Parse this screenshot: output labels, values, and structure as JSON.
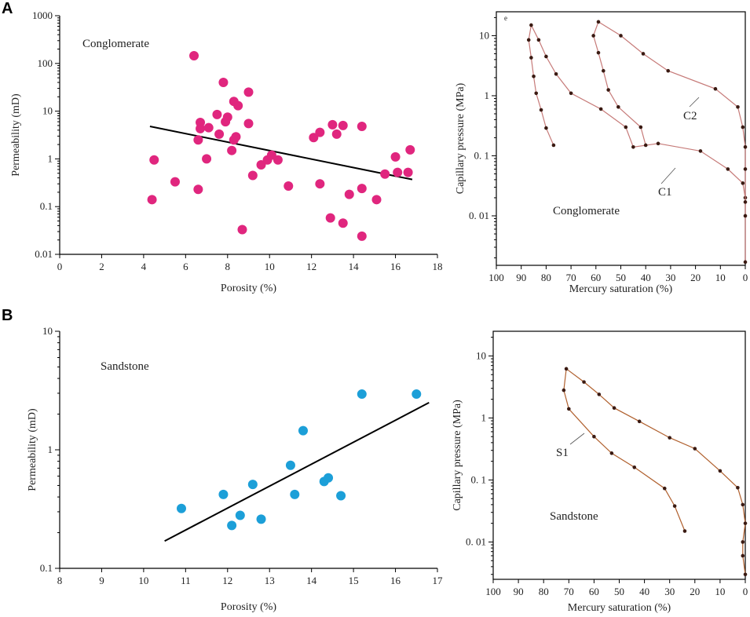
{
  "panel_labels": [
    "A",
    "B"
  ],
  "colors": {
    "conglomerate_marker": "#e0267e",
    "sandstone_marker": "#1c9fd8",
    "curve_a": "#c67a78",
    "curve_b": "#b0602e"
  },
  "chart_data": [
    {
      "id": "perm-conglomerate",
      "type": "scatter",
      "annotation": "Conglomerate",
      "xlabel": "Porosity (%)",
      "ylabel": "Permeability (mD)",
      "xscale": "linear",
      "yscale": "log",
      "xlim": [
        0,
        18
      ],
      "ylim": [
        0.01,
        1000
      ],
      "xticks": [
        0,
        2,
        4,
        6,
        8,
        10,
        12,
        14,
        16,
        18
      ],
      "yticks": [
        0.01,
        0.1,
        1,
        10,
        100,
        1000
      ],
      "ytick_labels": [
        "0.01",
        "0.1",
        "1",
        "10",
        "100",
        "1000"
      ],
      "points": [
        [
          4.4,
          0.14
        ],
        [
          4.5,
          0.95
        ],
        [
          5.5,
          0.33
        ],
        [
          6.4,
          145
        ],
        [
          6.6,
          0.23
        ],
        [
          6.6,
          2.5
        ],
        [
          6.7,
          5.8
        ],
        [
          6.7,
          4.3
        ],
        [
          7.0,
          1.0
        ],
        [
          7.1,
          4.5
        ],
        [
          7.5,
          8.5
        ],
        [
          7.6,
          3.3
        ],
        [
          7.8,
          40
        ],
        [
          7.9,
          6.0
        ],
        [
          8.0,
          7.5
        ],
        [
          8.2,
          1.5
        ],
        [
          8.3,
          16
        ],
        [
          8.3,
          2.5
        ],
        [
          8.4,
          2.9
        ],
        [
          8.5,
          13
        ],
        [
          8.7,
          0.033
        ],
        [
          9.0,
          5.5
        ],
        [
          9.0,
          25
        ],
        [
          9.2,
          0.45
        ],
        [
          9.6,
          0.75
        ],
        [
          9.9,
          0.95
        ],
        [
          10.1,
          1.2
        ],
        [
          10.4,
          0.95
        ],
        [
          10.9,
          0.27
        ],
        [
          12.1,
          2.8
        ],
        [
          12.4,
          3.6
        ],
        [
          12.4,
          0.3
        ],
        [
          12.9,
          0.058
        ],
        [
          13.0,
          5.2
        ],
        [
          13.2,
          3.3
        ],
        [
          13.5,
          5.0
        ],
        [
          13.5,
          0.045
        ],
        [
          13.8,
          0.18
        ],
        [
          14.4,
          0.024
        ],
        [
          14.4,
          0.24
        ],
        [
          14.4,
          4.8
        ],
        [
          15.1,
          0.14
        ],
        [
          15.5,
          0.48
        ],
        [
          16.0,
          1.1
        ],
        [
          16.1,
          0.52
        ],
        [
          16.6,
          0.52
        ],
        [
          16.7,
          1.55
        ]
      ],
      "trendline": [
        [
          4.3,
          4.8
        ],
        [
          16.8,
          0.37
        ]
      ]
    },
    {
      "id": "pc-conglomerate",
      "type": "line",
      "annotation": "Conglomerate",
      "corner_label": "e",
      "xlabel": "Mercury saturation (%)",
      "ylabel": "Capillary pressure (MPa)",
      "xscale": "linear",
      "x_reversed": true,
      "yscale": "log",
      "xlim": [
        100,
        0
      ],
      "ylim": [
        0.0015,
        25
      ],
      "xticks": [
        100,
        90,
        80,
        70,
        60,
        50,
        40,
        30,
        20,
        10,
        0
      ],
      "yticks": [
        0.01,
        0.1,
        1,
        10
      ],
      "ytick_labels": [
        "0. 01",
        "0. 1",
        "1",
        "10"
      ],
      "series": [
        {
          "name": "C1",
          "values": [
            [
              0,
              0.0017
            ],
            [
              0,
              0.01
            ],
            [
              0,
              0.02
            ],
            [
              1,
              0.035
            ],
            [
              7,
              0.06
            ],
            [
              18,
              0.12
            ],
            [
              35,
              0.16
            ],
            [
              45,
              0.14
            ],
            [
              48,
              0.3
            ],
            [
              58,
              0.6
            ],
            [
              70,
              1.1
            ],
            [
              76,
              2.3
            ],
            [
              80,
              4.5
            ],
            [
              83,
              8.5
            ],
            [
              86,
              15
            ],
            [
              87,
              8.5
            ],
            [
              86,
              4.3
            ],
            [
              85,
              2.1
            ],
            [
              84,
              1.1
            ],
            [
              82,
              0.58
            ],
            [
              80,
              0.29
            ],
            [
              77,
              0.15
            ]
          ]
        },
        {
          "name": "C2",
          "values": [
            [
              0,
              0.017
            ],
            [
              0,
              0.06
            ],
            [
              0,
              0.14
            ],
            [
              1,
              0.3
            ],
            [
              3,
              0.65
            ],
            [
              12,
              1.3
            ],
            [
              31,
              2.6
            ],
            [
              41,
              5.0
            ],
            [
              50,
              10
            ],
            [
              59,
              17
            ],
            [
              61,
              10
            ],
            [
              59,
              5.2
            ],
            [
              57,
              2.6
            ],
            [
              55,
              1.25
            ],
            [
              51,
              0.65
            ],
            [
              42,
              0.3
            ],
            [
              40,
              0.15
            ]
          ]
        }
      ]
    },
    {
      "id": "perm-sandstone",
      "type": "scatter",
      "annotation": "Sandstone",
      "xlabel": "Porosity (%)",
      "ylabel": "Permeability (mD)",
      "xscale": "linear",
      "yscale": "log",
      "xlim": [
        8,
        17
      ],
      "ylim": [
        0.1,
        10
      ],
      "xticks": [
        8,
        9,
        10,
        11,
        12,
        13,
        14,
        15,
        16,
        17
      ],
      "yticks": [
        0.1,
        1,
        10
      ],
      "ytick_labels": [
        "0.1",
        "1",
        "10"
      ],
      "points": [
        [
          10.9,
          0.32
        ],
        [
          11.9,
          0.42
        ],
        [
          12.1,
          0.23
        ],
        [
          12.3,
          0.28
        ],
        [
          12.6,
          0.51
        ],
        [
          12.8,
          0.26
        ],
        [
          13.5,
          0.74
        ],
        [
          13.6,
          0.42
        ],
        [
          13.8,
          1.45
        ],
        [
          14.3,
          0.54
        ],
        [
          14.4,
          0.58
        ],
        [
          14.7,
          0.41
        ],
        [
          15.2,
          2.95
        ],
        [
          16.5,
          2.95
        ]
      ],
      "trendline": [
        [
          10.5,
          0.17
        ],
        [
          16.8,
          2.5
        ]
      ]
    },
    {
      "id": "pc-sandstone",
      "type": "line",
      "annotation": "Sandstone",
      "xlabel": "Mercury saturation (%)",
      "ylabel": "Capillary pressure (MPa)",
      "xscale": "linear",
      "x_reversed": true,
      "yscale": "log",
      "xlim": [
        100,
        0
      ],
      "ylim": [
        0.0025,
        25
      ],
      "xticks": [
        100,
        90,
        80,
        70,
        60,
        50,
        40,
        30,
        20,
        10,
        0
      ],
      "yticks": [
        0.01,
        0.1,
        1,
        10
      ],
      "ytick_labels": [
        "0. 01",
        "0. 1",
        "1",
        "10"
      ],
      "series": [
        {
          "name": "S1",
          "values": [
            [
              0,
              0.003
            ],
            [
              1,
              0.006
            ],
            [
              1,
              0.01
            ],
            [
              0,
              0.02
            ],
            [
              1,
              0.04
            ],
            [
              3,
              0.075
            ],
            [
              10,
              0.14
            ],
            [
              20,
              0.32
            ],
            [
              30,
              0.48
            ],
            [
              42,
              0.88
            ],
            [
              52,
              1.45
            ],
            [
              58,
              2.4
            ],
            [
              64,
              3.8
            ],
            [
              71,
              6.2
            ],
            [
              72,
              2.8
            ],
            [
              70,
              1.4
            ],
            [
              60,
              0.5
            ],
            [
              53,
              0.27
            ],
            [
              44,
              0.16
            ],
            [
              32,
              0.073
            ],
            [
              28,
              0.038
            ],
            [
              24,
              0.015
            ]
          ]
        }
      ]
    }
  ]
}
